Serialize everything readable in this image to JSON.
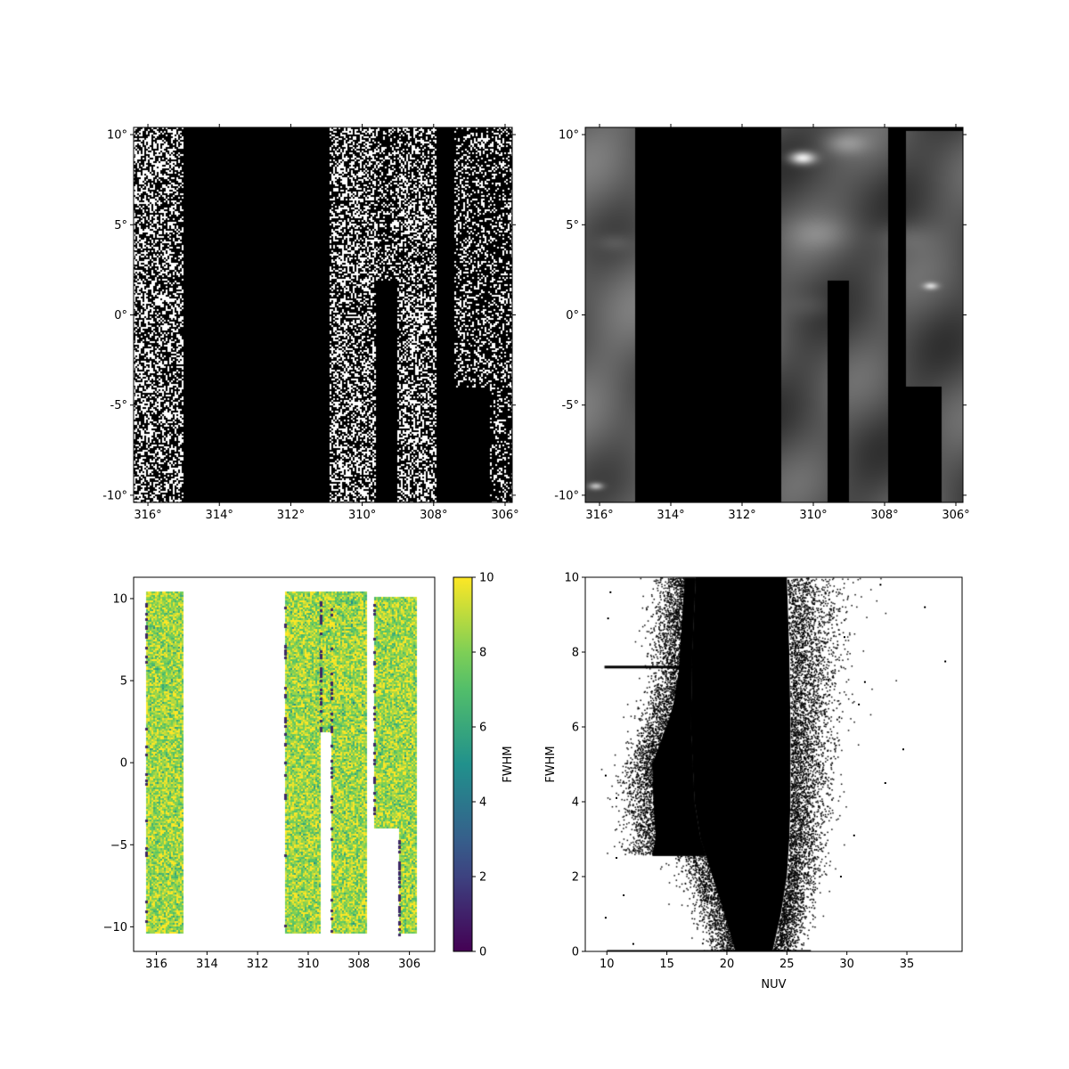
{
  "chart_data": [
    {
      "type": "heatmap",
      "panel": "top-left",
      "description_of_content": "binary (black/white) sky count map",
      "x_ticks": [
        "316°",
        "314°",
        "312°",
        "310°",
        "308°",
        "306°"
      ],
      "y_ticks": [
        "10°",
        "5°",
        "0°",
        "-5°",
        "-10°"
      ],
      "xlim": [
        316.4,
        305.8
      ],
      "ylim": [
        -10.4,
        10.4
      ],
      "colormap": "binary",
      "footprint": [
        {
          "x0": 316.4,
          "x1": 315.0,
          "y0": -10.4,
          "y1": 10.4
        },
        {
          "x0": 310.9,
          "x1": 309.6,
          "y0": -10.4,
          "y1": 10.4
        },
        {
          "x0": 309.6,
          "x1": 309.0,
          "y0": 1.9,
          "y1": 10.4
        },
        {
          "x0": 309.0,
          "x1": 307.9,
          "y0": -10.4,
          "y1": 10.4
        },
        {
          "x0": 307.4,
          "x1": 305.8,
          "y0": -4.0,
          "y1": 10.4
        },
        {
          "x0": 306.4,
          "x1": 305.8,
          "y0": -10.4,
          "y1": -4.0
        }
      ]
    },
    {
      "type": "heatmap",
      "panel": "top-right",
      "description_of_content": "grayscale smoothed background map",
      "x_ticks": [
        "316°",
        "314°",
        "312°",
        "310°",
        "308°",
        "306°"
      ],
      "y_ticks": [
        "10°",
        "5°",
        "0°",
        "-5°",
        "-10°"
      ],
      "xlim": [
        316.4,
        305.8
      ],
      "ylim": [
        -10.4,
        10.4
      ],
      "colormap": "gray",
      "footprint": [
        {
          "x0": 316.4,
          "x1": 315.0,
          "y0": -10.4,
          "y1": 10.4
        },
        {
          "x0": 310.9,
          "x1": 309.6,
          "y0": -10.4,
          "y1": 10.4
        },
        {
          "x0": 309.6,
          "x1": 309.0,
          "y0": 1.9,
          "y1": 10.4
        },
        {
          "x0": 309.0,
          "x1": 307.9,
          "y0": -10.4,
          "y1": 10.4
        },
        {
          "x0": 307.4,
          "x1": 305.8,
          "y0": -4.0,
          "y1": 10.2
        },
        {
          "x0": 306.4,
          "x1": 305.8,
          "y0": -10.4,
          "y1": -4.0
        }
      ]
    },
    {
      "type": "scatter",
      "panel": "bottom-left",
      "x_ticks": [
        "316",
        "314",
        "312",
        "310",
        "308",
        "306"
      ],
      "x_tick_values": [
        316,
        314,
        312,
        310,
        308,
        306
      ],
      "y_ticks": [
        "10",
        "5",
        "0",
        "−5",
        "−10"
      ],
      "y_tick_values": [
        10,
        5,
        0,
        -5,
        -10
      ],
      "xlim": [
        316.9,
        305.0
      ],
      "ylim": [
        -11.5,
        11.3
      ],
      "color_by": "FWHM",
      "colorbar": {
        "label": "FWHM",
        "range": [
          0,
          10
        ],
        "ticks": [
          "0",
          "2",
          "4",
          "6",
          "8",
          "10"
        ],
        "colormap": "viridis"
      },
      "footprint": [
        {
          "x0": 316.4,
          "x1": 314.9,
          "y0": -10.4,
          "y1": 10.4
        },
        {
          "x0": 310.9,
          "x1": 309.5,
          "y0": -10.4,
          "y1": 10.4
        },
        {
          "x0": 309.5,
          "x1": 309.1,
          "y0": 1.9,
          "y1": 10.4
        },
        {
          "x0": 309.1,
          "x1": 307.7,
          "y0": -10.4,
          "y1": 10.4
        },
        {
          "x0": 307.4,
          "x1": 305.7,
          "y0": -4.0,
          "y1": 10.1
        },
        {
          "x0": 306.4,
          "x1": 305.7,
          "y0": -10.4,
          "y1": -4.0
        }
      ]
    },
    {
      "type": "scatter",
      "panel": "bottom-right",
      "xlabel": "NUV",
      "ylabel": "FWHM",
      "x_ticks": [
        "10",
        "15",
        "20",
        "25",
        "30",
        "35"
      ],
      "x_tick_values": [
        10,
        15,
        20,
        25,
        30,
        35
      ],
      "y_ticks": [
        "0",
        "2",
        "4",
        "6",
        "8",
        "10"
      ],
      "y_tick_values": [
        0,
        2,
        4,
        6,
        8,
        10
      ],
      "xlim": [
        8.2,
        39.6
      ],
      "ylim": [
        0,
        10
      ],
      "marker_color": "#000000",
      "dense_core_fwhm_vs_nuv": [
        {
          "y": 0.0,
          "x_min": 20.7,
          "x_max": 23.8
        },
        {
          "y": 1.0,
          "x_min": 19.8,
          "x_max": 24.5
        },
        {
          "y": 2.0,
          "x_min": 18.8,
          "x_max": 25.0
        },
        {
          "y": 3.0,
          "x_min": 17.8,
          "x_max": 25.2
        },
        {
          "y": 4.0,
          "x_min": 17.3,
          "x_max": 25.3
        },
        {
          "y": 6.0,
          "x_min": 17.0,
          "x_max": 25.3
        },
        {
          "y": 8.0,
          "x_min": 17.1,
          "x_max": 25.2
        },
        {
          "y": 10.0,
          "x_min": 17.4,
          "x_max": 25.0
        }
      ],
      "bright_branch": [
        {
          "x": 13.8,
          "y": 2.6
        },
        {
          "x": 14.1,
          "y": 3.0
        },
        {
          "x": 13.9,
          "y": 4.0
        },
        {
          "x": 13.8,
          "y": 5.0
        },
        {
          "x": 14.5,
          "y": 5.6
        },
        {
          "x": 15.5,
          "y": 6.5
        },
        {
          "x": 16.0,
          "y": 7.5
        },
        {
          "x": 16.2,
          "y": 8.5
        },
        {
          "x": 16.5,
          "y": 10.0
        }
      ],
      "saturation_streak": {
        "x_start": 9.8,
        "x_end": 18.0,
        "y": 7.6
      },
      "floor_streak": {
        "x_start": 10.0,
        "x_end": 27.0,
        "y": 0.0
      },
      "outliers": [
        {
          "x": 38.2,
          "y": 7.75
        },
        {
          "x": 34.7,
          "y": 5.4
        },
        {
          "x": 33.2,
          "y": 4.5
        },
        {
          "x": 32.8,
          "y": 9.8
        },
        {
          "x": 31.0,
          "y": 6.6
        },
        {
          "x": 30.6,
          "y": 3.1
        },
        {
          "x": 31.5,
          "y": 7.2
        },
        {
          "x": 29.8,
          "y": 8.4
        },
        {
          "x": 10.3,
          "y": 9.6
        },
        {
          "x": 10.8,
          "y": 4.1
        },
        {
          "x": 9.9,
          "y": 0.9
        },
        {
          "x": 12.2,
          "y": 0.2
        },
        {
          "x": 11.4,
          "y": 1.5
        },
        {
          "x": 10.8,
          "y": 2.5
        },
        {
          "x": 9.9,
          "y": 4.7
        },
        {
          "x": 10.1,
          "y": 8.9
        },
        {
          "x": 36.5,
          "y": 9.2
        },
        {
          "x": 29.5,
          "y": 2.0
        }
      ]
    }
  ]
}
